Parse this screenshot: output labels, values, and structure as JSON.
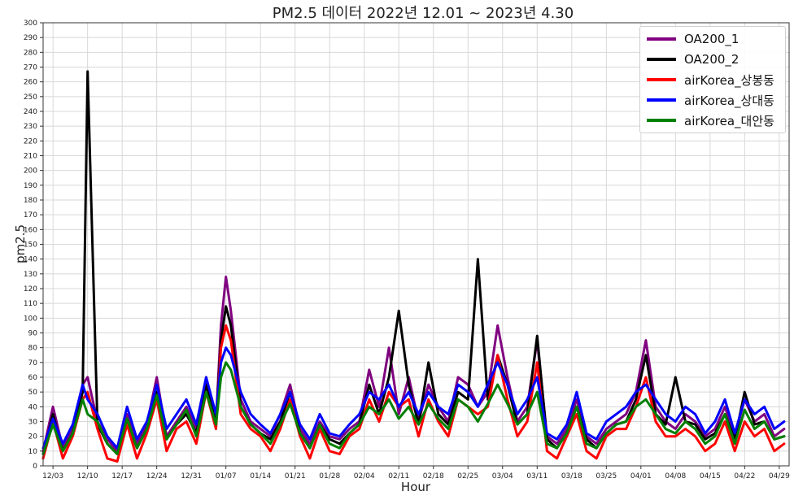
{
  "chart_data": {
    "type": "line",
    "title": "PM2.5 데이터 2022년 12.01 ~ 2023년 4.30",
    "xlabel": "Hour",
    "ylabel": "pm2.5",
    "ylim": [
      0,
      300
    ],
    "y_ticks": [
      0,
      10,
      20,
      30,
      40,
      50,
      60,
      70,
      80,
      90,
      100,
      110,
      120,
      130,
      140,
      150,
      160,
      170,
      180,
      190,
      200,
      210,
      220,
      230,
      240,
      250,
      260,
      270,
      280,
      290,
      300
    ],
    "x_range_days": [
      "2022-12-01",
      "2023-04-30"
    ],
    "x_tick_labels": [
      "12/03",
      "12/10",
      "12/17",
      "12/24",
      "12/31",
      "01/07",
      "01/14",
      "01/21",
      "01/28",
      "02/04",
      "02/11",
      "02/18",
      "02/25",
      "03/04",
      "03/11",
      "03/18",
      "03/25",
      "04/01",
      "04/08",
      "04/15",
      "04/22",
      "04/29"
    ],
    "x_tick_dates": [
      "2022-12-03",
      "2022-12-10",
      "2022-12-17",
      "2022-12-24",
      "2022-12-31",
      "2023-01-07",
      "2023-01-14",
      "2023-01-21",
      "2023-01-28",
      "2023-02-04",
      "2023-02-11",
      "2023-02-18",
      "2023-02-25",
      "2023-03-04",
      "2023-03-11",
      "2023-03-18",
      "2023-03-25",
      "2023-04-01",
      "2023-04-08",
      "2023-04-15",
      "2023-04-22",
      "2023-04-29"
    ],
    "grid": true,
    "legend_position": "top-right",
    "series": [
      {
        "name": "OA200_1",
        "color": "#800080",
        "x": [
          "2022-12-01",
          "2022-12-03",
          "2022-12-05",
          "2022-12-07",
          "2022-12-09",
          "2022-12-10",
          "2022-12-12",
          "2022-12-14",
          "2022-12-16",
          "2022-12-18",
          "2022-12-20",
          "2022-12-22",
          "2022-12-24",
          "2022-12-26",
          "2022-12-28",
          "2022-12-30",
          "2023-01-01",
          "2023-01-03",
          "2023-01-05",
          "2023-01-06",
          "2023-01-07",
          "2023-01-08",
          "2023-01-10",
          "2023-01-12",
          "2023-01-14",
          "2023-01-16",
          "2023-01-18",
          "2023-01-20",
          "2023-01-22",
          "2023-01-24",
          "2023-01-26",
          "2023-01-28",
          "2023-01-30",
          "2023-02-01",
          "2023-02-03",
          "2023-02-05",
          "2023-02-07",
          "2023-02-09",
          "2023-02-11",
          "2023-02-13",
          "2023-02-15",
          "2023-02-17",
          "2023-02-19",
          "2023-02-21",
          "2023-02-23",
          "2023-02-25",
          "2023-02-27",
          "2023-03-01",
          "2023-03-03",
          "2023-03-05",
          "2023-03-07",
          "2023-03-09",
          "2023-03-11",
          "2023-03-13",
          "2023-03-15",
          "2023-03-17",
          "2023-03-19",
          "2023-03-21",
          "2023-03-23",
          "2023-03-25",
          "2023-03-27",
          "2023-03-29",
          "2023-03-31",
          "2023-04-02",
          "2023-04-04",
          "2023-04-06",
          "2023-04-08",
          "2023-04-10",
          "2023-04-12",
          "2023-04-14",
          "2023-04-16",
          "2023-04-18",
          "2023-04-20",
          "2023-04-22",
          "2023-04-24",
          "2023-04-26",
          "2023-04-28",
          "2023-04-30"
        ],
        "values": [
          10,
          40,
          12,
          25,
          55,
          60,
          30,
          18,
          10,
          35,
          15,
          28,
          60,
          20,
          30,
          40,
          25,
          60,
          30,
          95,
          128,
          105,
          45,
          30,
          25,
          20,
          35,
          55,
          25,
          15,
          30,
          20,
          18,
          25,
          30,
          65,
          40,
          80,
          35,
          60,
          30,
          55,
          40,
          30,
          60,
          55,
          40,
          50,
          95,
          60,
          30,
          40,
          85,
          20,
          15,
          25,
          45,
          20,
          15,
          25,
          30,
          35,
          50,
          85,
          40,
          30,
          25,
          35,
          30,
          20,
          25,
          40,
          20,
          45,
          30,
          35,
          20,
          25
        ]
      },
      {
        "name": "OA200_2",
        "color": "#000000",
        "x": [
          "2022-12-01",
          "2022-12-03",
          "2022-12-05",
          "2022-12-07",
          "2022-12-09",
          "2022-12-10",
          "2022-12-12",
          "2022-12-14",
          "2022-12-16",
          "2022-12-18",
          "2022-12-20",
          "2022-12-22",
          "2022-12-24",
          "2022-12-26",
          "2022-12-28",
          "2022-12-30",
          "2023-01-01",
          "2023-01-03",
          "2023-01-05",
          "2023-01-06",
          "2023-01-07",
          "2023-01-08",
          "2023-01-10",
          "2023-01-12",
          "2023-01-14",
          "2023-01-16",
          "2023-01-18",
          "2023-01-20",
          "2023-01-22",
          "2023-01-24",
          "2023-01-26",
          "2023-01-28",
          "2023-01-30",
          "2023-02-01",
          "2023-02-03",
          "2023-02-05",
          "2023-02-07",
          "2023-02-09",
          "2023-02-11",
          "2023-02-13",
          "2023-02-15",
          "2023-02-17",
          "2023-02-19",
          "2023-02-21",
          "2023-02-23",
          "2023-02-25",
          "2023-02-27",
          "2023-03-01",
          "2023-03-03",
          "2023-03-05",
          "2023-03-07",
          "2023-03-09",
          "2023-03-11",
          "2023-03-13",
          "2023-03-15",
          "2023-03-17",
          "2023-03-19",
          "2023-03-21",
          "2023-03-23",
          "2023-03-25",
          "2023-03-27",
          "2023-03-29",
          "2023-03-31",
          "2023-04-02",
          "2023-04-04",
          "2023-04-06",
          "2023-04-08",
          "2023-04-10",
          "2023-04-12",
          "2023-04-14",
          "2023-04-16",
          "2023-04-18",
          "2023-04-20",
          "2023-04-22",
          "2023-04-24",
          "2023-04-26",
          "2023-04-28",
          "2023-04-30"
        ],
        "values": [
          8,
          35,
          10,
          22,
          50,
          267,
          28,
          15,
          8,
          30,
          12,
          25,
          50,
          18,
          28,
          35,
          22,
          55,
          28,
          85,
          108,
          95,
          40,
          28,
          22,
          18,
          30,
          50,
          22,
          12,
          28,
          18,
          15,
          22,
          28,
          55,
          35,
          60,
          105,
          55,
          28,
          70,
          35,
          28,
          50,
          45,
          140,
          45,
          75,
          55,
          28,
          35,
          88,
          18,
          12,
          22,
          40,
          18,
          12,
          22,
          28,
          30,
          45,
          75,
          35,
          28,
          60,
          30,
          28,
          18,
          22,
          35,
          18,
          50,
          28,
          30,
          18,
          20
        ]
      },
      {
        "name": "airKorea_상봉동",
        "color": "#ff0000",
        "x": [
          "2022-12-01",
          "2022-12-03",
          "2022-12-05",
          "2022-12-07",
          "2022-12-09",
          "2022-12-10",
          "2022-12-12",
          "2022-12-14",
          "2022-12-16",
          "2022-12-18",
          "2022-12-20",
          "2022-12-22",
          "2022-12-24",
          "2022-12-26",
          "2022-12-28",
          "2022-12-30",
          "2023-01-01",
          "2023-01-03",
          "2023-01-05",
          "2023-01-06",
          "2023-01-07",
          "2023-01-08",
          "2023-01-10",
          "2023-01-12",
          "2023-01-14",
          "2023-01-16",
          "2023-01-18",
          "2023-01-20",
          "2023-01-22",
          "2023-01-24",
          "2023-01-26",
          "2023-01-28",
          "2023-01-30",
          "2023-02-01",
          "2023-02-03",
          "2023-02-05",
          "2023-02-07",
          "2023-02-09",
          "2023-02-11",
          "2023-02-13",
          "2023-02-15",
          "2023-02-17",
          "2023-02-19",
          "2023-02-21",
          "2023-02-23",
          "2023-02-25",
          "2023-02-27",
          "2023-03-01",
          "2023-03-03",
          "2023-03-05",
          "2023-03-07",
          "2023-03-09",
          "2023-03-11",
          "2023-03-13",
          "2023-03-15",
          "2023-03-17",
          "2023-03-19",
          "2023-03-21",
          "2023-03-23",
          "2023-03-25",
          "2023-03-27",
          "2023-03-29",
          "2023-03-31",
          "2023-04-02",
          "2023-04-04",
          "2023-04-06",
          "2023-04-08",
          "2023-04-10",
          "2023-04-12",
          "2023-04-14",
          "2023-04-16",
          "2023-04-18",
          "2023-04-20",
          "2023-04-22",
          "2023-04-24",
          "2023-04-26",
          "2023-04-28",
          "2023-04-30"
        ],
        "values": [
          5,
          30,
          5,
          20,
          45,
          50,
          25,
          5,
          3,
          28,
          5,
          22,
          45,
          10,
          25,
          30,
          15,
          50,
          25,
          80,
          95,
          85,
          35,
          25,
          20,
          10,
          25,
          45,
          20,
          5,
          25,
          10,
          8,
          20,
          25,
          45,
          30,
          50,
          40,
          45,
          20,
          45,
          30,
          20,
          45,
          40,
          35,
          40,
          75,
          45,
          20,
          30,
          70,
          10,
          5,
          20,
          35,
          10,
          5,
          20,
          25,
          25,
          40,
          60,
          30,
          20,
          20,
          25,
          20,
          10,
          15,
          30,
          10,
          30,
          20,
          25,
          10,
          15
        ]
      },
      {
        "name": "airKorea_상대동",
        "color": "#0000ff",
        "x": [
          "2022-12-01",
          "2022-12-03",
          "2022-12-05",
          "2022-12-07",
          "2022-12-09",
          "2022-12-10",
          "2022-12-12",
          "2022-12-14",
          "2022-12-16",
          "2022-12-18",
          "2022-12-20",
          "2022-12-22",
          "2022-12-24",
          "2022-12-26",
          "2022-12-28",
          "2022-12-30",
          "2023-01-01",
          "2023-01-03",
          "2023-01-05",
          "2023-01-06",
          "2023-01-07",
          "2023-01-08",
          "2023-01-10",
          "2023-01-12",
          "2023-01-14",
          "2023-01-16",
          "2023-01-18",
          "2023-01-20",
          "2023-01-22",
          "2023-01-24",
          "2023-01-26",
          "2023-01-28",
          "2023-01-30",
          "2023-02-01",
          "2023-02-03",
          "2023-02-05",
          "2023-02-07",
          "2023-02-09",
          "2023-02-11",
          "2023-02-13",
          "2023-02-15",
          "2023-02-17",
          "2023-02-19",
          "2023-02-21",
          "2023-02-23",
          "2023-02-25",
          "2023-02-27",
          "2023-03-01",
          "2023-03-03",
          "2023-03-05",
          "2023-03-07",
          "2023-03-09",
          "2023-03-11",
          "2023-03-13",
          "2023-03-15",
          "2023-03-17",
          "2023-03-19",
          "2023-03-21",
          "2023-03-23",
          "2023-03-25",
          "2023-03-27",
          "2023-03-29",
          "2023-03-31",
          "2023-04-02",
          "2023-04-04",
          "2023-04-06",
          "2023-04-08",
          "2023-04-10",
          "2023-04-12",
          "2023-04-14",
          "2023-04-16",
          "2023-04-18",
          "2023-04-20",
          "2023-04-22",
          "2023-04-24",
          "2023-04-26",
          "2023-04-28",
          "2023-04-30"
        ],
        "values": [
          12,
          32,
          15,
          28,
          55,
          45,
          35,
          20,
          12,
          40,
          18,
          30,
          55,
          25,
          35,
          45,
          28,
          60,
          35,
          70,
          80,
          75,
          50,
          35,
          28,
          22,
          35,
          50,
          28,
          18,
          35,
          22,
          20,
          28,
          35,
          50,
          45,
          55,
          40,
          50,
          35,
          50,
          40,
          35,
          55,
          50,
          40,
          55,
          70,
          55,
          35,
          45,
          60,
          22,
          18,
          28,
          50,
          22,
          18,
          30,
          35,
          40,
          50,
          55,
          45,
          35,
          30,
          40,
          35,
          22,
          30,
          45,
          22,
          45,
          35,
          40,
          25,
          30
        ]
      },
      {
        "name": "airKorea_대안동",
        "color": "#008000",
        "x": [
          "2022-12-01",
          "2022-12-03",
          "2022-12-05",
          "2022-12-07",
          "2022-12-09",
          "2022-12-10",
          "2022-12-12",
          "2022-12-14",
          "2022-12-16",
          "2022-12-18",
          "2022-12-20",
          "2022-12-22",
          "2022-12-24",
          "2022-12-26",
          "2022-12-28",
          "2022-12-30",
          "2023-01-01",
          "2023-01-03",
          "2023-01-05",
          "2023-01-06",
          "2023-01-07",
          "2023-01-08",
          "2023-01-10",
          "2023-01-12",
          "2023-01-14",
          "2023-01-16",
          "2023-01-18",
          "2023-01-20",
          "2023-01-22",
          "2023-01-24",
          "2023-01-26",
          "2023-01-28",
          "2023-01-30",
          "2023-02-01",
          "2023-02-03",
          "2023-02-05",
          "2023-02-07",
          "2023-02-09",
          "2023-02-11",
          "2023-02-13",
          "2023-02-15",
          "2023-02-17",
          "2023-02-19",
          "2023-02-21",
          "2023-02-23",
          "2023-02-25",
          "2023-02-27",
          "2023-03-01",
          "2023-03-03",
          "2023-03-05",
          "2023-03-07",
          "2023-03-09",
          "2023-03-11",
          "2023-03-13",
          "2023-03-15",
          "2023-03-17",
          "2023-03-19",
          "2023-03-21",
          "2023-03-23",
          "2023-03-25",
          "2023-03-27",
          "2023-03-29",
          "2023-03-31",
          "2023-04-02",
          "2023-04-04",
          "2023-04-06",
          "2023-04-08",
          "2023-04-10",
          "2023-04-12",
          "2023-04-14",
          "2023-04-16",
          "2023-04-18",
          "2023-04-20",
          "2023-04-22",
          "2023-04-24",
          "2023-04-26",
          "2023-04-28",
          "2023-04-30"
        ],
        "values": [
          8,
          28,
          10,
          22,
          45,
          35,
          30,
          15,
          8,
          32,
          12,
          25,
          48,
          18,
          28,
          38,
          20,
          50,
          28,
          60,
          70,
          65,
          40,
          28,
          22,
          15,
          28,
          42,
          22,
          12,
          28,
          15,
          12,
          22,
          28,
          40,
          35,
          45,
          32,
          40,
          28,
          42,
          32,
          25,
          45,
          40,
          30,
          42,
          55,
          42,
          28,
          35,
          50,
          15,
          12,
          22,
          40,
          15,
          12,
          22,
          28,
          30,
          40,
          45,
          35,
          25,
          22,
          30,
          25,
          15,
          20,
          35,
          15,
          38,
          25,
          30,
          18,
          20
        ]
      }
    ]
  }
}
